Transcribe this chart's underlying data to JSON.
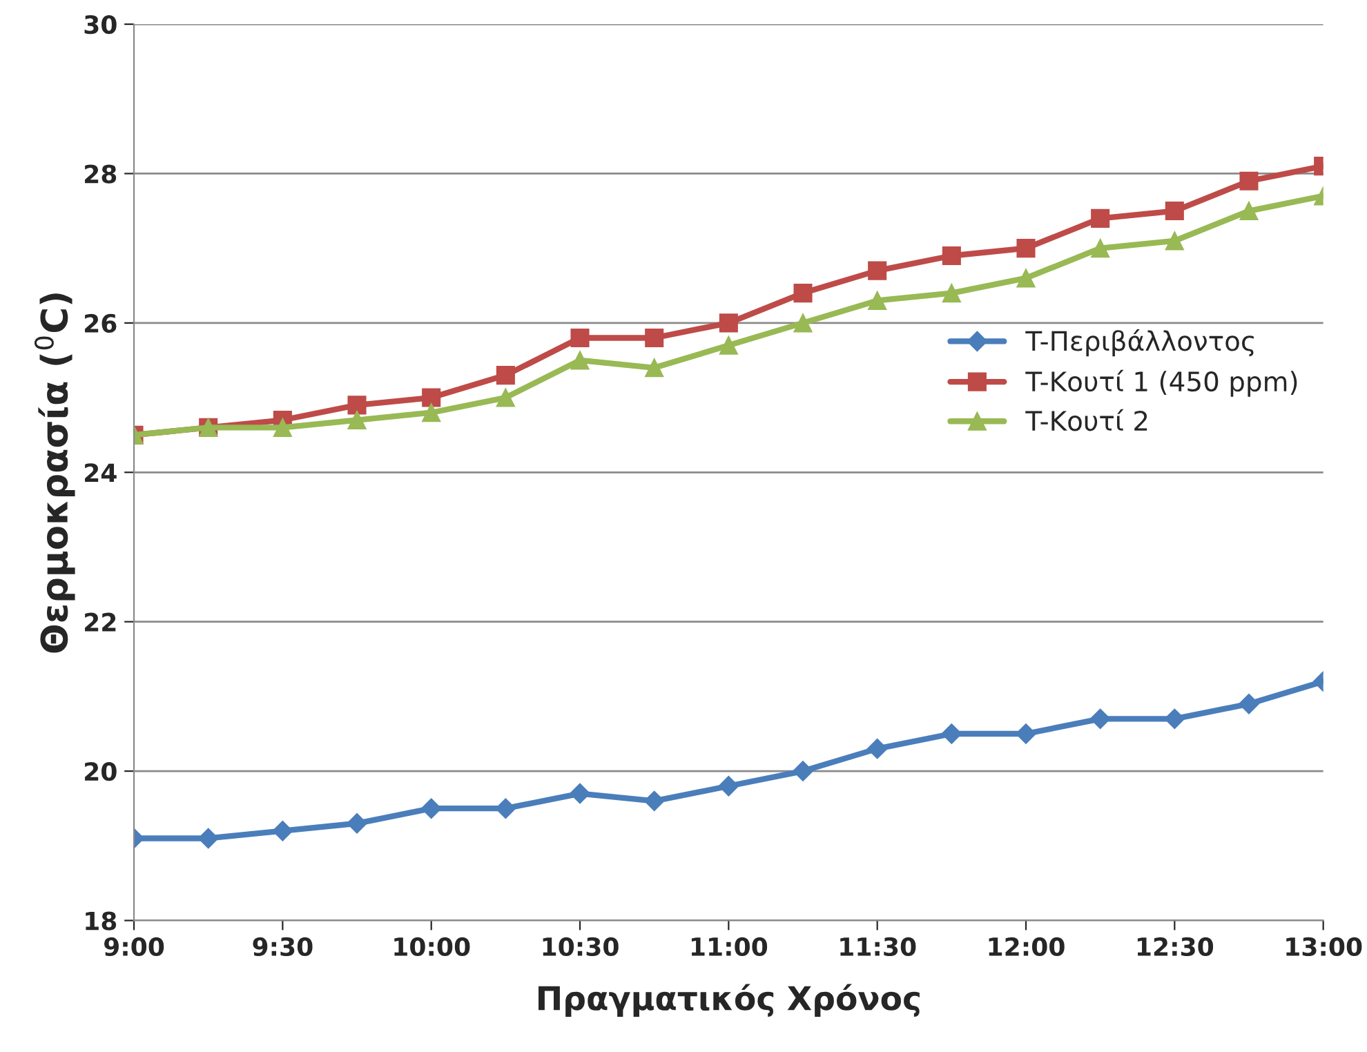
{
  "chart_data": {
    "type": "line",
    "xlabel": "Πραγματικός Χρόνος",
    "ylabel": "Θερμοκρασία ($^{0}$C)",
    "x": [
      9,
      9.25,
      9.5,
      9.75,
      10,
      10.25,
      10.5,
      10.75,
      11,
      11.25,
      11.5,
      11.75,
      12,
      12.25,
      12.5,
      12.75,
      13
    ],
    "series": [
      {
        "name": "T-Περιβάλλοντος",
        "color": "#4a7ebb",
        "marker": "diamond",
        "values": [
          19.1,
          19.1,
          19.2,
          19.3,
          19.5,
          19.5,
          19.7,
          19.6,
          19.8,
          20.0,
          20.3,
          20.5,
          20.5,
          20.7,
          20.7,
          20.9,
          21.2
        ]
      },
      {
        "name": "T-Κουτί 1 (450 ppm)",
        "color": "#be4b48",
        "marker": "square",
        "values": [
          24.5,
          24.6,
          24.7,
          24.9,
          25.0,
          25.3,
          25.8,
          25.8,
          26.0,
          26.4,
          26.7,
          26.9,
          27.0,
          27.4,
          27.5,
          27.9,
          28.1
        ]
      },
      {
        "name": "T-Κουτί 2",
        "color": "#98b954",
        "marker": "triangle",
        "values": [
          24.5,
          24.6,
          24.6,
          24.7,
          24.8,
          25.0,
          25.5,
          25.4,
          25.7,
          26.0,
          26.3,
          26.4,
          26.6,
          27.0,
          27.1,
          27.5,
          27.7
        ]
      }
    ],
    "xlim": [
      9,
      13
    ],
    "xticks": [
      {
        "value": 9,
        "label": "9:00"
      },
      {
        "value": 9.5,
        "label": "9:30"
      },
      {
        "value": 10,
        "label": "10:00"
      },
      {
        "value": 10.5,
        "label": "10:30"
      },
      {
        "value": 11,
        "label": "11:00"
      },
      {
        "value": 11.5,
        "label": "11:30"
      },
      {
        "value": 12,
        "label": "12:00"
      },
      {
        "value": 12.5,
        "label": "12:30"
      },
      {
        "value": 13,
        "label": "13:00"
      }
    ],
    "ylim": [
      18,
      30
    ],
    "yticks": [
      18,
      20,
      22,
      24,
      26,
      28,
      30
    ],
    "grid": "y",
    "legend": "right",
    "line_style": "solid"
  }
}
